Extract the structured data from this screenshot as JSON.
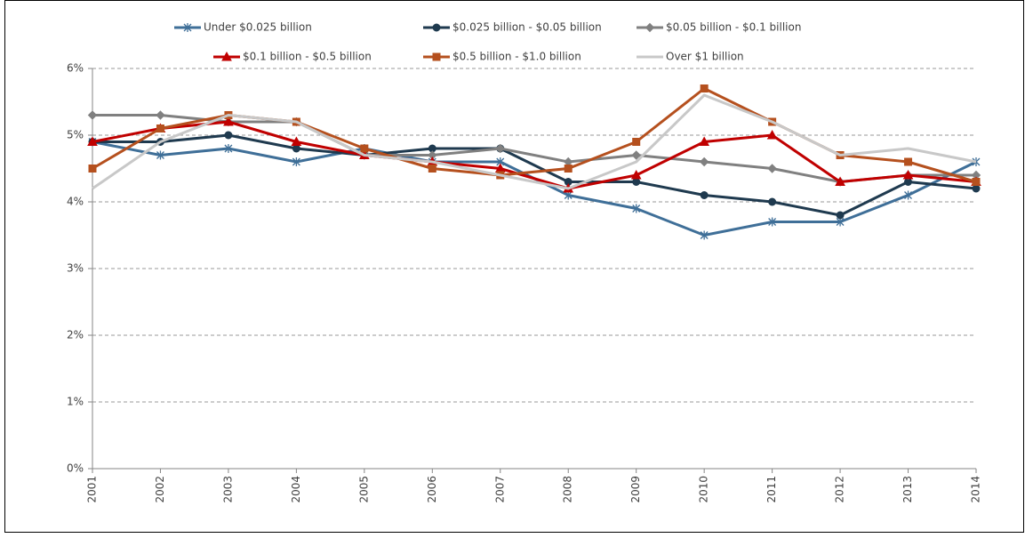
{
  "chart_data": {
    "type": "line",
    "categories": [
      "2001",
      "2002",
      "2003",
      "2004",
      "2005",
      "2006",
      "2007",
      "2008",
      "2009",
      "2010",
      "2011",
      "2012",
      "2013",
      "2014"
    ],
    "series": [
      {
        "name": "Under $0.025 billion",
        "color": "#3f6f98",
        "marker": "asterisk",
        "values": [
          4.9,
          4.7,
          4.8,
          4.6,
          4.8,
          4.6,
          4.6,
          4.1,
          3.9,
          3.5,
          3.7,
          3.7,
          4.1,
          4.6
        ]
      },
      {
        "name": "$0.025 billion - $0.05 billion",
        "color": "#1f3a4f",
        "marker": "circle",
        "values": [
          4.9,
          4.9,
          5.0,
          4.8,
          4.7,
          4.8,
          4.8,
          4.3,
          4.3,
          4.1,
          4.0,
          3.8,
          4.3,
          4.2
        ]
      },
      {
        "name": "$0.05 billion - $0.1 billion",
        "color": "#808080",
        "marker": "diamond",
        "values": [
          5.3,
          5.3,
          5.2,
          5.2,
          4.7,
          4.7,
          4.8,
          4.6,
          4.7,
          4.6,
          4.5,
          4.3,
          4.4,
          4.4
        ]
      },
      {
        "name": "$0.1 billion - $0.5 billion",
        "color": "#c00000",
        "marker": "triangle",
        "values": [
          4.9,
          5.1,
          5.2,
          4.9,
          4.7,
          4.6,
          4.5,
          4.2,
          4.4,
          4.9,
          5.0,
          4.3,
          4.4,
          4.3
        ]
      },
      {
        "name": "$0.5 billion - $1.0 billion",
        "color": "#b5501e",
        "marker": "square",
        "values": [
          4.5,
          5.1,
          5.3,
          5.2,
          4.8,
          4.5,
          4.4,
          4.5,
          4.9,
          5.7,
          5.2,
          4.7,
          4.6,
          4.3
        ]
      },
      {
        "name": "Over $1 billion",
        "color": "#c8c8c8",
        "marker": "none",
        "values": [
          4.2,
          4.9,
          5.3,
          5.2,
          4.7,
          4.6,
          4.4,
          4.2,
          4.6,
          5.6,
          5.2,
          4.7,
          4.8,
          4.6
        ]
      }
    ],
    "ylim": [
      0,
      6
    ],
    "yticks": [
      {
        "value": 0,
        "label": "0%"
      },
      {
        "value": 1,
        "label": "1%"
      },
      {
        "value": 2,
        "label": "2%"
      },
      {
        "value": 3,
        "label": "3%"
      },
      {
        "value": 4,
        "label": "4%"
      },
      {
        "value": 5,
        "label": "5%"
      },
      {
        "value": 6,
        "label": "6%"
      }
    ],
    "grid": true,
    "legend": "top"
  }
}
